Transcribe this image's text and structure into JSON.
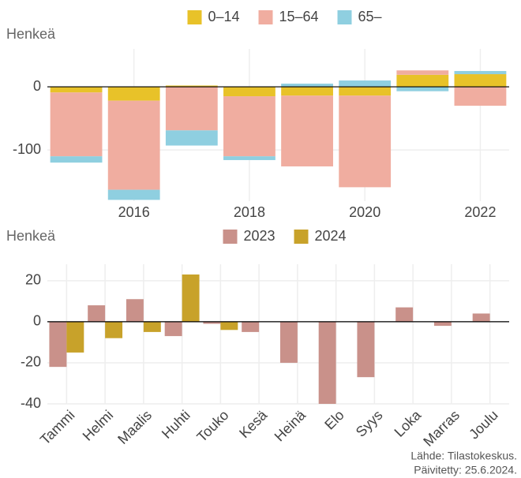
{
  "chart_data": [
    {
      "type": "stacked-bar",
      "y_label": "Henkeä",
      "x": [
        2015,
        2016,
        2017,
        2018,
        2019,
        2020,
        2021,
        2022
      ],
      "xlim": [
        2014.5,
        2022.5
      ],
      "xticks": [
        2016,
        2018,
        2020,
        2022
      ],
      "ylim": [
        -181,
        60
      ],
      "yticks": [
        -100,
        0
      ],
      "grid": true,
      "legend": "top",
      "series": [
        {
          "name": "0–14",
          "color": "#e8c229",
          "values": [
            -9,
            -22,
            2,
            -15,
            -14,
            -14,
            19,
            20
          ]
        },
        {
          "name": "15–64",
          "color": "#f0ada0",
          "values": [
            -101,
            -141,
            -69,
            -95,
            -112,
            -145,
            7,
            -30
          ]
        },
        {
          "name": "65–",
          "color": "#8fcfe0",
          "values": [
            -10,
            -16,
            -24,
            -6,
            5,
            10,
            -7,
            5
          ]
        }
      ]
    },
    {
      "type": "grouped-bar",
      "y_label": "Henkeä",
      "categories": [
        "Tammi",
        "Helmi",
        "Maalis",
        "Huhti",
        "Touko",
        "Kesä",
        "Heinä",
        "Elo",
        "Syys",
        "Loka",
        "Marras",
        "Joulu"
      ],
      "ylim": [
        -40,
        28
      ],
      "yticks": [
        -40,
        -20,
        0,
        20
      ],
      "grid": true,
      "legend": "top",
      "series": [
        {
          "name": "2023",
          "color": "#c9918a",
          "values": [
            -22,
            8,
            11,
            -7,
            -1,
            -5,
            -20,
            -40,
            -27,
            7,
            -2,
            4
          ]
        },
        {
          "name": "2024",
          "color": "#c8a22a",
          "values": [
            -15,
            -8,
            -5,
            23,
            -4,
            null,
            null,
            null,
            null,
            null,
            null,
            null
          ]
        }
      ]
    }
  ],
  "source": [
    "Lähde: Tilastokeskus.",
    "Päivitetty: 25.6.2024."
  ]
}
